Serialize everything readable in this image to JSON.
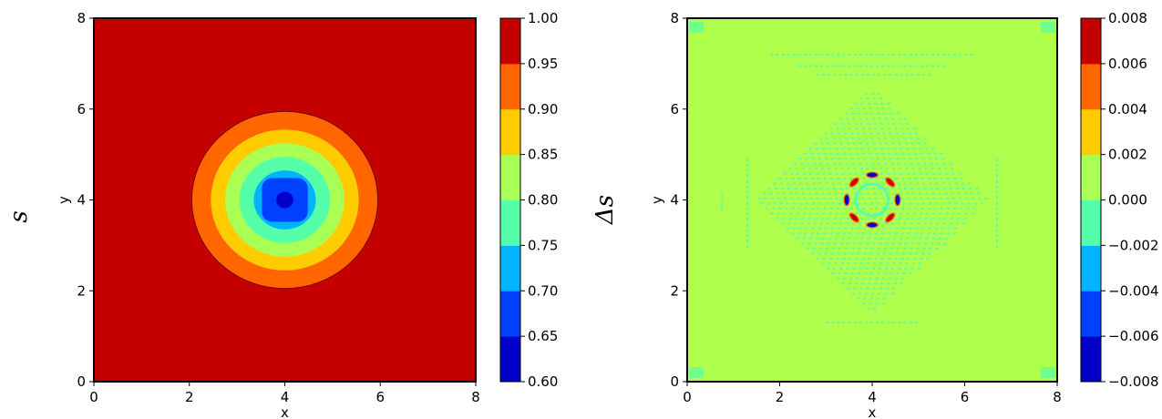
{
  "chart_data": [
    {
      "type": "heatmap",
      "panel": "contour",
      "row_label": "s",
      "xlabel": "x",
      "ylabel": "y",
      "xlim": [
        0,
        8
      ],
      "ylim": [
        0,
        8
      ],
      "x_ticks": [
        0,
        2,
        4,
        6,
        8
      ],
      "y_ticks": [
        0,
        2,
        4,
        6,
        8
      ],
      "center": [
        4,
        4
      ],
      "background_value": 1.0,
      "rings": [
        {
          "radius": 1.95,
          "level": 0.95
        },
        {
          "radius": 1.55,
          "level": 0.9
        },
        {
          "radius": 1.25,
          "level": 0.85
        },
        {
          "radius": 0.95,
          "level": 0.8
        },
        {
          "radius": 0.65,
          "level": 0.75
        },
        {
          "radius": 0.48,
          "level": 0.7,
          "shape": "rounded-square"
        },
        {
          "radius": 0.18,
          "level": 0.65
        }
      ],
      "colorbar": {
        "ticks": [
          "0.60",
          "0.65",
          "0.70",
          "0.75",
          "0.80",
          "0.85",
          "0.90",
          "0.95",
          "1.00"
        ],
        "colors": [
          "#0000c8",
          "#0040ff",
          "#00b4ff",
          "#55ffaa",
          "#aaff55",
          "#ffcc00",
          "#ff6600",
          "#c40000"
        ]
      },
      "colors": {
        "background": "#c40000",
        "outline": "#7a0000"
      }
    },
    {
      "type": "heatmap",
      "panel": "error",
      "row_label": "Δs",
      "xlabel": "x",
      "ylabel": "y",
      "xlim": [
        0,
        8
      ],
      "ylim": [
        0,
        8
      ],
      "x_ticks": [
        0,
        2,
        4,
        6,
        8
      ],
      "y_ticks": [
        0,
        2,
        4,
        6,
        8
      ],
      "center": [
        4,
        4
      ],
      "background_value": 0.001,
      "background_color": "#b0ff4c",
      "pattern_color": "#55ffaa",
      "diamond": {
        "half_diagonal": 2.5
      },
      "ring": {
        "radius": 0.55,
        "blobs": 8,
        "positive_color": "#c40000",
        "negative_color": "#0000c8",
        "accent_color": "#ff6600"
      },
      "colorbar": {
        "ticks": [
          "−0.008",
          "−0.006",
          "−0.004",
          "−0.002",
          "0.000",
          "0.002",
          "0.004",
          "0.006",
          "0.008"
        ],
        "colors": [
          "#0000c8",
          "#0040ff",
          "#00b4ff",
          "#55ffaa",
          "#aaff55",
          "#ffcc00",
          "#ff6600",
          "#c40000"
        ]
      }
    }
  ]
}
